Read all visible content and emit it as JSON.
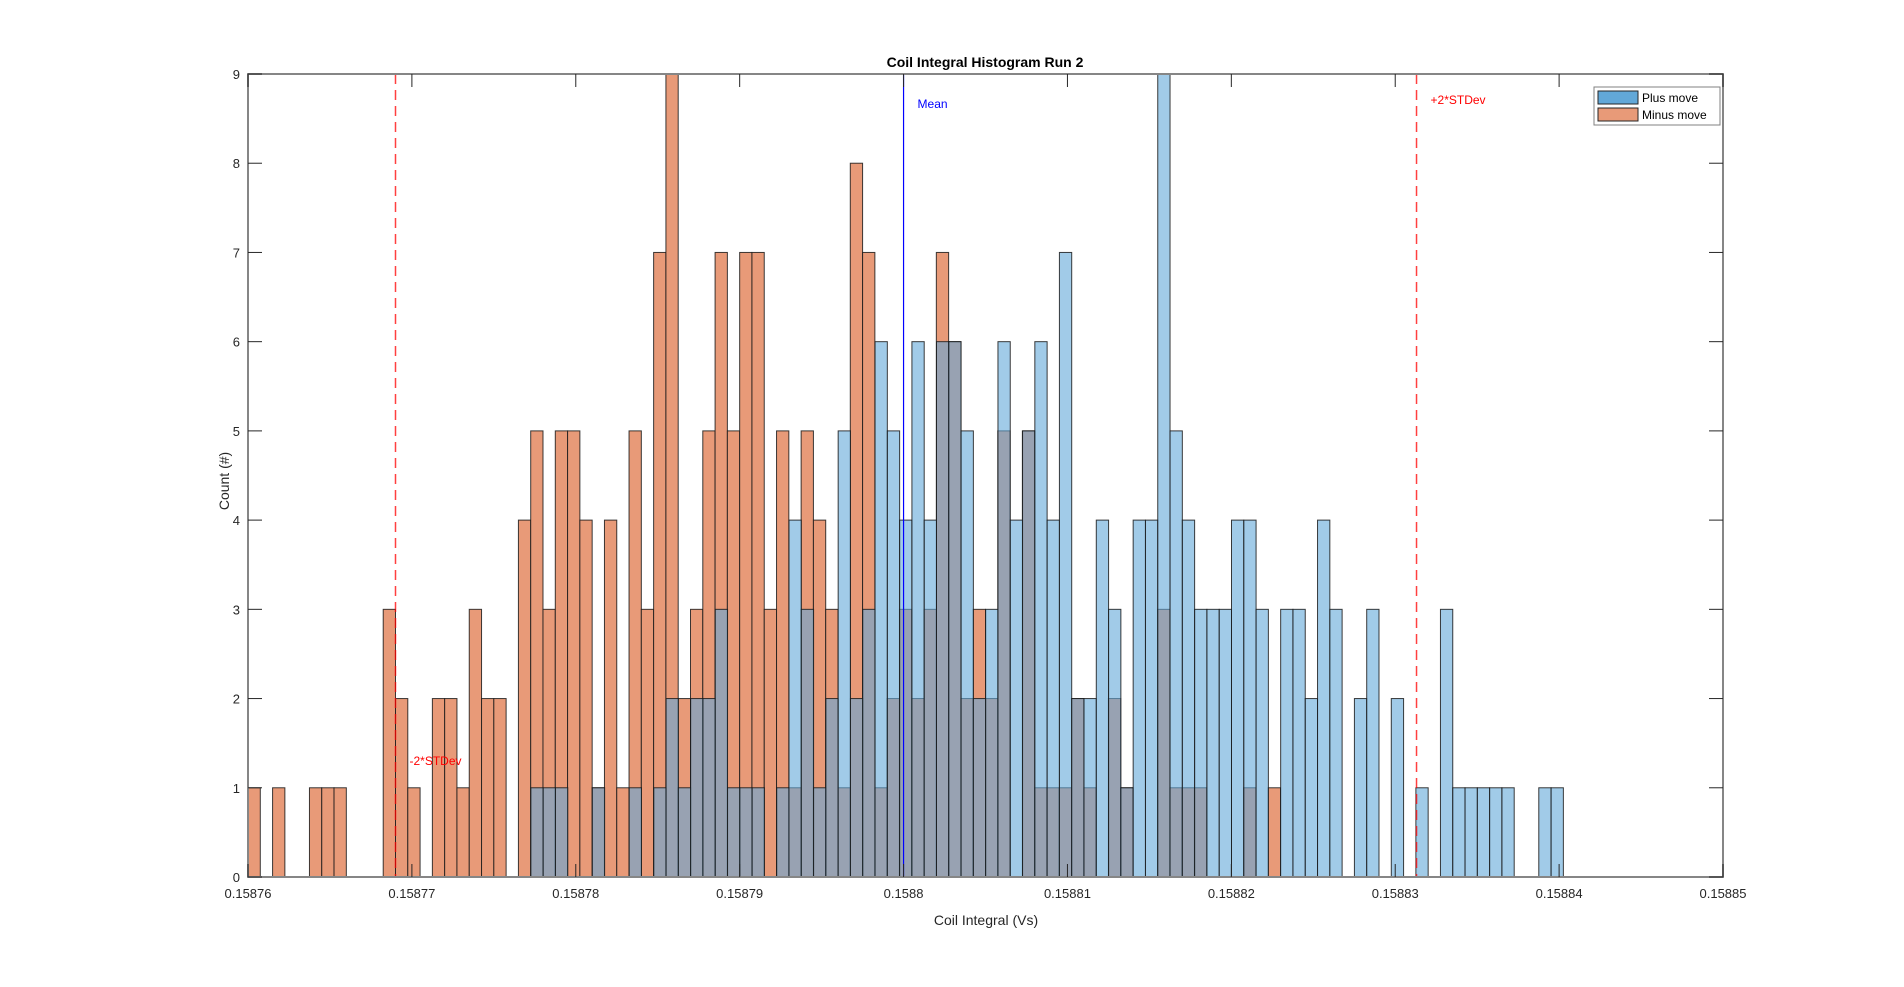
{
  "chart_data": {
    "type": "bar",
    "subtype": "overlapping-histogram",
    "title": "Coil Integral Histogram Run 2",
    "xlabel": "Coil Integral (Vs)",
    "ylabel": "Count (#)",
    "xlim": [
      0.15876,
      0.15885
    ],
    "ylim": [
      0,
      9
    ],
    "xticks": [
      0.15876,
      0.15877,
      0.15878,
      0.15879,
      0.1588,
      0.15881,
      0.15882,
      0.15883,
      0.15884,
      0.15885
    ],
    "xtick_labels": [
      "0.15876",
      "0.15877",
      "0.15878",
      "0.15879",
      "0.1588",
      "0.15881",
      "0.15882",
      "0.15883",
      "0.15884",
      "0.15885"
    ],
    "yticks": [
      0,
      1,
      2,
      3,
      4,
      5,
      6,
      7,
      8,
      9
    ],
    "ytick_labels": [
      "0",
      "1",
      "2",
      "3",
      "4",
      "5",
      "6",
      "7",
      "8",
      "9"
    ],
    "grid": false,
    "legend": {
      "position": "top-right",
      "entries": [
        "Plus move",
        "Minus move"
      ]
    },
    "bin_start": 0.15876,
    "bin_width": 7.5e-07,
    "series": [
      {
        "name": "Plus move",
        "color": "#0072BD",
        "fill": "#62A8D8",
        "bin_offset": 1e-08,
        "values": [
          0,
          0,
          0,
          0,
          0,
          0,
          0,
          0,
          0,
          0,
          0,
          0,
          0,
          0,
          0,
          0,
          0,
          0,
          0,
          0,
          0,
          0,
          0,
          1,
          1,
          1,
          0,
          0,
          1,
          0,
          0,
          1,
          0,
          1,
          2,
          1,
          2,
          2,
          3,
          1,
          1,
          1,
          0,
          1,
          4,
          3,
          1,
          2,
          5,
          2,
          3,
          6,
          5,
          4,
          6,
          4,
          6,
          6,
          5,
          2,
          3,
          6,
          4,
          5,
          6,
          4,
          7,
          2,
          2,
          4,
          3,
          1,
          4,
          4,
          9,
          5,
          4,
          3,
          3,
          3,
          4,
          4,
          3,
          0,
          3,
          3,
          2,
          4,
          3,
          0,
          2,
          3,
          0,
          2,
          0,
          1,
          0,
          3,
          1,
          1,
          1,
          1,
          1,
          0,
          0,
          1,
          1
        ]
      },
      {
        "name": "Minus move",
        "color": "#D95319",
        "fill": "#E89A78",
        "bin_offset": 0,
        "values": [
          1,
          0,
          1,
          0,
          0,
          1,
          1,
          1,
          0,
          0,
          0,
          3,
          2,
          1,
          0,
          2,
          2,
          1,
          3,
          2,
          2,
          0,
          4,
          5,
          3,
          5,
          5,
          4,
          1,
          4,
          1,
          5,
          3,
          7,
          9,
          2,
          3,
          5,
          7,
          5,
          7,
          7,
          3,
          5,
          1,
          5,
          4,
          3,
          1,
          8,
          7,
          1,
          2,
          3,
          2,
          3,
          7,
          6,
          2,
          3,
          2,
          5,
          0,
          5,
          1,
          1,
          1,
          2,
          1,
          0,
          2,
          1,
          0,
          0,
          3,
          1,
          1,
          1,
          0,
          0,
          0,
          1,
          0,
          1
        ]
      }
    ],
    "reference_lines": [
      {
        "label": "Mean",
        "x": 0.1588,
        "color": "#0000FF",
        "style": "solid"
      },
      {
        "label": "-2*STDev",
        "x": 0.158769,
        "color": "#FF0000",
        "style": "dashed"
      },
      {
        "label": "+2*STDev",
        "x": 0.1588313,
        "color": "#FF0000",
        "style": "dashed"
      }
    ]
  }
}
